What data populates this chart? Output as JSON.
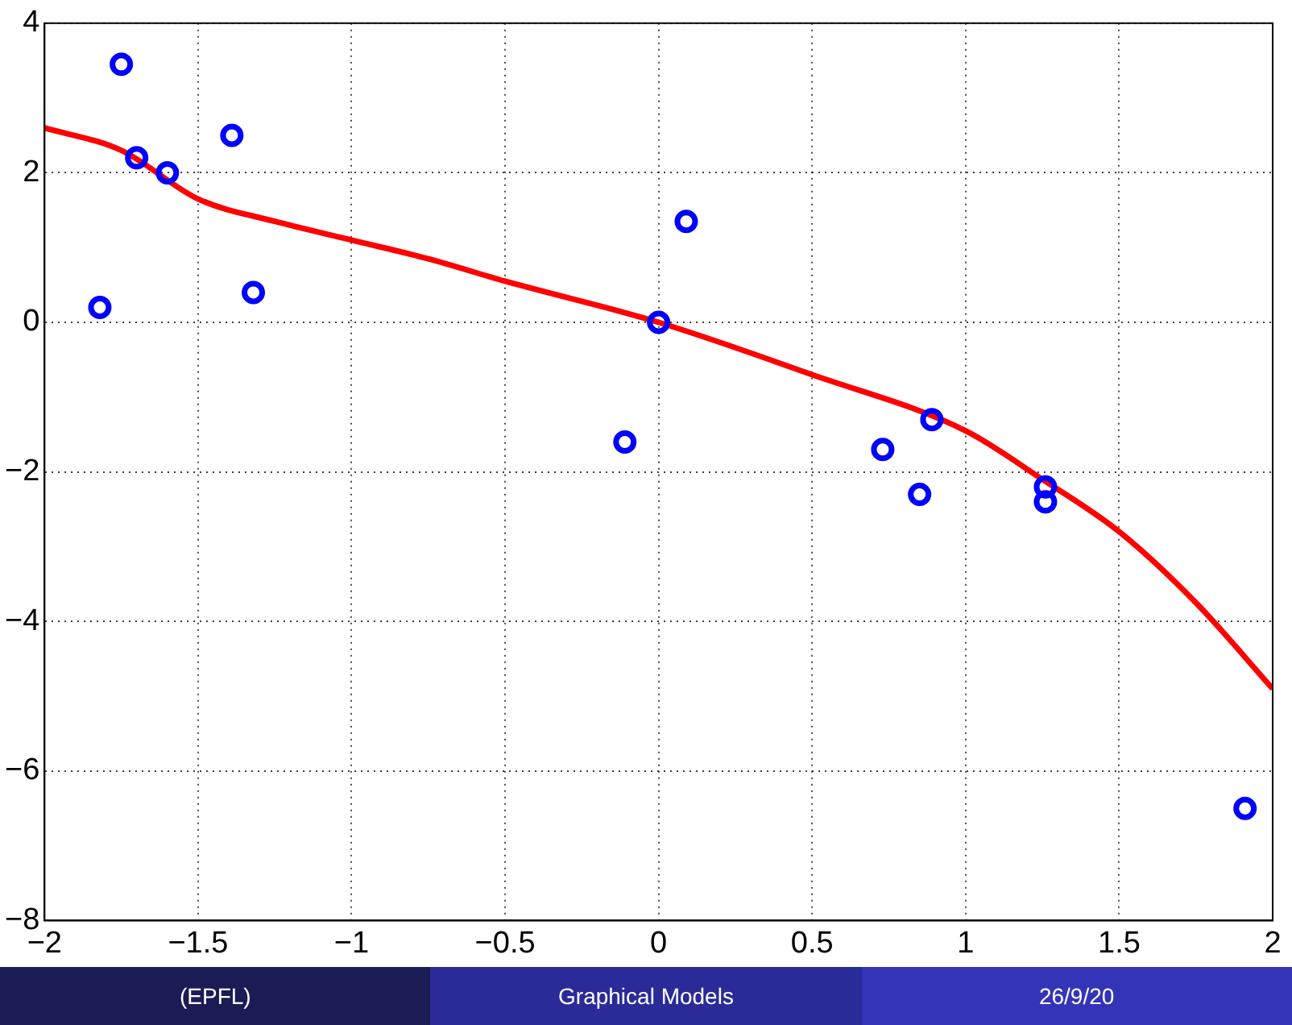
{
  "chart_data": {
    "type": "scatter",
    "xlim": [
      -2,
      2
    ],
    "ylim": [
      -8,
      4
    ],
    "xticks": [
      -2,
      -1.5,
      -1,
      -0.5,
      0,
      0.5,
      1,
      1.5,
      2
    ],
    "yticks": [
      -8,
      -6,
      -4,
      -2,
      0,
      2,
      4
    ],
    "grid": true,
    "legend": false,
    "series": [
      {
        "color": "#0000ff",
        "marker": "circle",
        "x": [
          -1.82,
          -1.75,
          -1.7,
          -1.6,
          -1.39,
          -1.32,
          0.09,
          0.0,
          -0.11,
          0.73,
          0.85,
          0.89,
          1.26,
          1.26,
          1.91
        ],
        "values": [
          0.2,
          3.45,
          2.2,
          2.0,
          2.5,
          0.4,
          1.35,
          0.0,
          -1.6,
          -1.7,
          -2.3,
          -1.3,
          -2.2,
          -2.4,
          -6.5
        ]
      },
      {
        "type": "line",
        "color": "#ff0000",
        "marker": "none",
        "line_style": "solid",
        "x": [
          -2,
          -1.75,
          -1.5,
          -1.25,
          -1,
          -0.75,
          -0.5,
          0,
          0.5,
          1,
          1.25,
          1.5,
          1.75,
          2
        ],
        "values": [
          2.6,
          2.3,
          1.65,
          1.35,
          1.1,
          0.85,
          0.55,
          0,
          -0.7,
          -1.45,
          -2.1,
          -2.8,
          -3.75,
          -4.9
        ]
      }
    ],
    "annotations": [
      "(EPFL)",
      "Graphical Models",
      "26/9/20"
    ]
  }
}
